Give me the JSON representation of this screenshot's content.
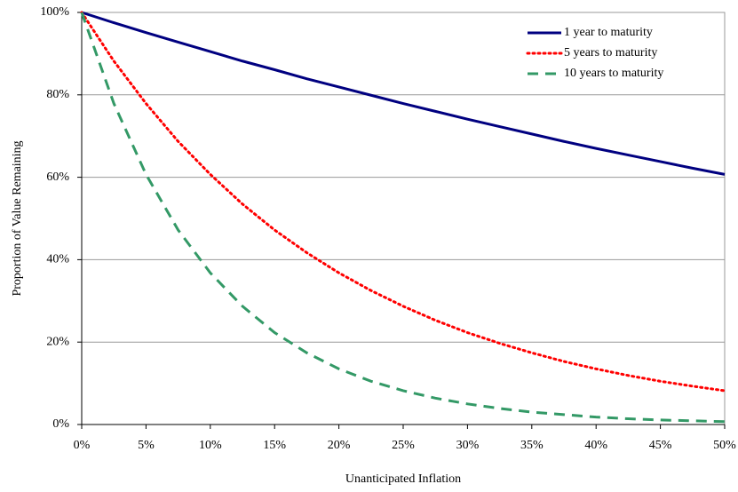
{
  "chart_data": {
    "type": "line",
    "x_label": "Unanticipated Inflation",
    "y_label": "Proportion of Value Remaining",
    "x": [
      0,
      2.5,
      5,
      7.5,
      10,
      12.5,
      15,
      17.5,
      20,
      22.5,
      25,
      27.5,
      30,
      32.5,
      35,
      37.5,
      40,
      42.5,
      45,
      47.5,
      50
    ],
    "series": [
      {
        "name": "1 year to maturity",
        "color": "#000080",
        "dash": "solid",
        "values": [
          100,
          97.5,
          95.1,
          92.8,
          90.5,
          88.2,
          86.1,
          83.9,
          81.9,
          79.9,
          77.9,
          76.0,
          74.1,
          72.3,
          70.5,
          68.7,
          67.0,
          65.4,
          63.8,
          62.2,
          60.7
        ]
      },
      {
        "name": "5 years to maturity",
        "color": "#ff0000",
        "dash": "dotted",
        "values": [
          100,
          88.2,
          77.9,
          68.7,
          60.7,
          53.5,
          47.2,
          41.7,
          36.8,
          32.5,
          28.7,
          25.3,
          22.3,
          19.7,
          17.4,
          15.3,
          13.5,
          11.9,
          10.5,
          9.3,
          8.2
        ]
      },
      {
        "name": "10 years to maturity",
        "color": "#339966",
        "dash": "dashed",
        "values": [
          100,
          77.9,
          60.7,
          47.2,
          36.8,
          28.7,
          22.3,
          17.4,
          13.5,
          10.5,
          8.2,
          6.4,
          5.0,
          3.9,
          3.0,
          2.4,
          1.8,
          1.4,
          1.1,
          0.9,
          0.7
        ]
      }
    ],
    "xlim": [
      0,
      50
    ],
    "xticks": [
      {
        "value": 0,
        "label": "0%"
      },
      {
        "value": 5,
        "label": "5%"
      },
      {
        "value": 10,
        "label": "10%"
      },
      {
        "value": 15,
        "label": "15%"
      },
      {
        "value": 20,
        "label": "20%"
      },
      {
        "value": 25,
        "label": "25%"
      },
      {
        "value": 30,
        "label": "30%"
      },
      {
        "value": 35,
        "label": "35%"
      },
      {
        "value": 40,
        "label": "40%"
      },
      {
        "value": 45,
        "label": "45%"
      },
      {
        "value": 50,
        "label": "50%"
      }
    ],
    "ylim": [
      0,
      100
    ],
    "yticks": [
      {
        "value": 0,
        "label": "0%"
      },
      {
        "value": 20,
        "label": "20%"
      },
      {
        "value": 40,
        "label": "40%"
      },
      {
        "value": 60,
        "label": "60%"
      },
      {
        "value": 80,
        "label": "80%"
      },
      {
        "value": 100,
        "label": "100%"
      }
    ],
    "grid": true,
    "legend": "top-right"
  }
}
